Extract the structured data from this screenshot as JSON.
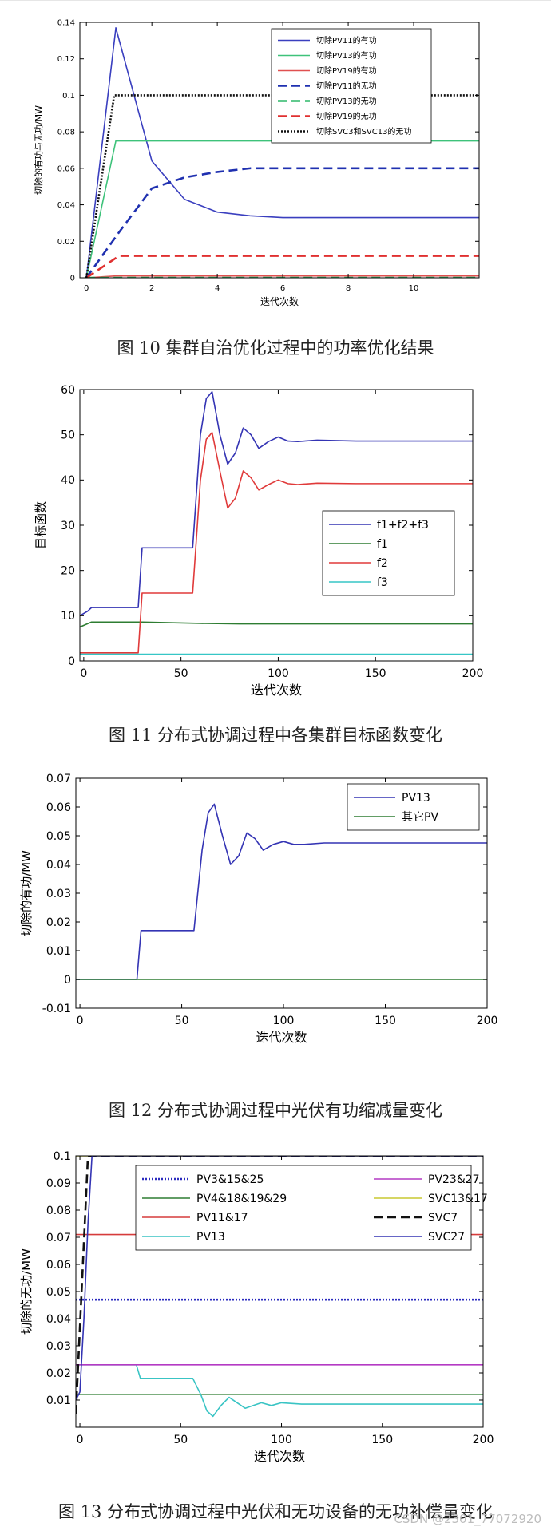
{
  "watermark": "CSDN @2301_77072920",
  "figures": [
    {
      "caption": "图 10  集群自治优化过程中的功率优化结果"
    },
    {
      "caption": "图 11  分布式协调过程中各集群目标函数变化"
    },
    {
      "caption": "图 12  分布式协调过程中光伏有功缩减量变化"
    },
    {
      "caption": "图 13  分布式协调过程中光伏和无功设备的无功补偿量变化"
    }
  ],
  "chart_data": [
    {
      "type": "line",
      "xlabel": "迭代次数",
      "ylabel": "切除的有功与无功/MW",
      "xlim": [
        -0.2,
        12
      ],
      "ylim": [
        0,
        0.14
      ],
      "xticks": [
        0,
        2,
        4,
        6,
        8,
        10
      ],
      "yticks": [
        0,
        0.02,
        0.04,
        0.06,
        0.08,
        0.1,
        0.12,
        0.14
      ],
      "grid": false,
      "legend_position": "top-right",
      "series": [
        {
          "name": "切除PV11的有功",
          "color": "#3a3fbf",
          "style": "solid",
          "x": [
            0,
            0.9,
            2,
            3,
            4,
            5,
            6,
            8,
            10,
            12
          ],
          "y": [
            0,
            0.137,
            0.064,
            0.043,
            0.036,
            0.034,
            0.033,
            0.033,
            0.033,
            0.033
          ]
        },
        {
          "name": "切除PV13的有功",
          "color": "#3ec27a",
          "style": "solid",
          "x": [
            0,
            0.9,
            12
          ],
          "y": [
            0,
            0.075,
            0.075
          ]
        },
        {
          "name": "切除PV19的有功",
          "color": "#e05050",
          "style": "solid",
          "x": [
            0,
            0.9,
            12
          ],
          "y": [
            0,
            0.001,
            0.001
          ]
        },
        {
          "name": "切除PV11的无功",
          "color": "#1f30b0",
          "style": "dashed",
          "x": [
            0,
            1,
            2,
            3,
            4,
            5,
            6,
            8,
            10,
            12
          ],
          "y": [
            0,
            0.025,
            0.049,
            0.055,
            0.058,
            0.06,
            0.06,
            0.06,
            0.06,
            0.06
          ]
        },
        {
          "name": "切除PV13的无功",
          "color": "#2eb86a",
          "style": "dashed",
          "x": [
            0,
            12
          ],
          "y": [
            0,
            0
          ]
        },
        {
          "name": "切除PV19的无功",
          "color": "#e03030",
          "style": "dashed",
          "x": [
            0,
            1,
            12
          ],
          "y": [
            0,
            0.012,
            0.012
          ]
        },
        {
          "name": "切除SVC3和SVC13的无功",
          "color": "#111111",
          "style": "dotted",
          "x": [
            0,
            0.85,
            12
          ],
          "y": [
            0,
            0.1,
            0.1
          ]
        }
      ]
    },
    {
      "type": "line",
      "xlabel": "迭代次数",
      "ylabel": "目标函数",
      "xlim": [
        -2,
        200
      ],
      "ylim": [
        0,
        60
      ],
      "xticks": [
        0,
        50,
        100,
        150,
        200
      ],
      "yticks": [
        0,
        10,
        20,
        30,
        40,
        50,
        60
      ],
      "grid": false,
      "legend_position": "center-right",
      "series": [
        {
          "name": "f1+f2+f3",
          "color": "#3434b4",
          "style": "solid",
          "x": [
            -2,
            2,
            4,
            28,
            30,
            56,
            60,
            63,
            66,
            70,
            74,
            78,
            82,
            86,
            90,
            95,
            100,
            105,
            110,
            120,
            140,
            200
          ],
          "y": [
            10,
            11,
            11.8,
            11.8,
            25,
            25,
            50,
            58,
            59.5,
            50,
            43.5,
            46,
            51.5,
            50,
            47,
            48.5,
            49.5,
            48.6,
            48.5,
            48.8,
            48.6,
            48.6
          ]
        },
        {
          "name": "f1",
          "color": "#2e7d32",
          "style": "solid",
          "x": [
            -2,
            4,
            30,
            60,
            80,
            120,
            200
          ],
          "y": [
            7.5,
            8.6,
            8.6,
            8.3,
            8.2,
            8.2,
            8.2
          ]
        },
        {
          "name": "f2",
          "color": "#e03a3a",
          "style": "solid",
          "x": [
            -2,
            28,
            30,
            56,
            60,
            63,
            66,
            70,
            74,
            78,
            82,
            86,
            90,
            95,
            100,
            105,
            110,
            120,
            140,
            200
          ],
          "y": [
            1.8,
            1.8,
            15,
            15,
            40,
            49,
            50.5,
            42,
            33.8,
            36,
            42,
            40.5,
            37.8,
            39,
            40,
            39.2,
            39,
            39.3,
            39.2,
            39.2
          ]
        },
        {
          "name": "f3",
          "color": "#36c6c6",
          "style": "solid",
          "x": [
            -2,
            200
          ],
          "y": [
            1.5,
            1.5
          ]
        }
      ]
    },
    {
      "type": "line",
      "xlabel": "迭代次数",
      "ylabel": "切除的有功/MW",
      "xlim": [
        -2,
        200
      ],
      "ylim": [
        -0.01,
        0.07
      ],
      "xticks": [
        0,
        50,
        100,
        150,
        200
      ],
      "yticks": [
        -0.01,
        0,
        0.01,
        0.02,
        0.03,
        0.04,
        0.05,
        0.06,
        0.07
      ],
      "ytick_labels": [
        "-0.01",
        "0",
        "0.01",
        "0.02",
        "0.03",
        "0.04",
        "0.05",
        "0.06",
        "0.07"
      ],
      "grid": false,
      "legend_position": "top-right",
      "series": [
        {
          "name": "PV13",
          "color": "#3434b4",
          "style": "solid",
          "x": [
            -2,
            28,
            30,
            56,
            60,
            63,
            66,
            70,
            74,
            78,
            82,
            86,
            90,
            95,
            100,
            105,
            110,
            120,
            140,
            200
          ],
          "y": [
            0,
            0,
            0.017,
            0.017,
            0.045,
            0.058,
            0.061,
            0.05,
            0.04,
            0.043,
            0.051,
            0.049,
            0.045,
            0.047,
            0.048,
            0.047,
            0.047,
            0.0475,
            0.0475,
            0.0475
          ]
        },
        {
          "name": "其它PV",
          "color": "#2e7d32",
          "style": "solid",
          "x": [
            -2,
            200
          ],
          "y": [
            0,
            0
          ]
        }
      ]
    },
    {
      "type": "line",
      "xlabel": "迭代次数",
      "ylabel": "切除的无功/MW",
      "xlim": [
        -2,
        200
      ],
      "ylim": [
        0,
        0.1
      ],
      "xticks": [
        0,
        50,
        100,
        150,
        200
      ],
      "yticks": [
        0.01,
        0.02,
        0.03,
        0.04,
        0.05,
        0.06,
        0.07,
        0.08,
        0.09,
        0.1
      ],
      "grid": false,
      "legend_position": "top",
      "series": [
        {
          "name": "PV3&15&25",
          "color": "#2b2bbf",
          "style": "dotted",
          "x": [
            -2,
            200
          ],
          "y": [
            0.047,
            0.047
          ]
        },
        {
          "name": "PV4&18&19&29",
          "color": "#2e7d32",
          "style": "solid",
          "x": [
            -2,
            200
          ],
          "y": [
            0.012,
            0.012
          ]
        },
        {
          "name": "PV11&17",
          "color": "#d63b3b",
          "style": "solid",
          "x": [
            -2,
            200
          ],
          "y": [
            0.071,
            0.071
          ]
        },
        {
          "name": "PV13",
          "color": "#39c4c4",
          "style": "solid",
          "x": [
            -2,
            28,
            30,
            56,
            60,
            63,
            66,
            70,
            74,
            78,
            82,
            86,
            90,
            95,
            100,
            110,
            200
          ],
          "y": [
            0.023,
            0.023,
            0.018,
            0.018,
            0.012,
            0.006,
            0.004,
            0.008,
            0.011,
            0.009,
            0.007,
            0.008,
            0.009,
            0.008,
            0.009,
            0.0085,
            0.0085
          ]
        },
        {
          "name": "PV23&27",
          "color": "#b43ac4",
          "style": "solid",
          "x": [
            -2,
            200
          ],
          "y": [
            0.023,
            0.023
          ]
        },
        {
          "name": "SVC13&17",
          "color": "#c8c830",
          "style": "solid",
          "x": [
            -2,
            2,
            200
          ],
          "y": [
            0.1,
            0.1,
            0.1
          ]
        },
        {
          "name": "SVC7",
          "color": "#111111",
          "style": "dashed",
          "x": [
            -2,
            4,
            200
          ],
          "y": [
            0.005,
            0.1,
            0.1
          ]
        },
        {
          "name": "SVC27",
          "color": "#3434b4",
          "style": "solid",
          "x": [
            -2,
            0,
            2,
            4,
            6,
            200
          ],
          "y": [
            0.01,
            0.013,
            0.04,
            0.075,
            0.1,
            0.1
          ]
        }
      ]
    }
  ]
}
